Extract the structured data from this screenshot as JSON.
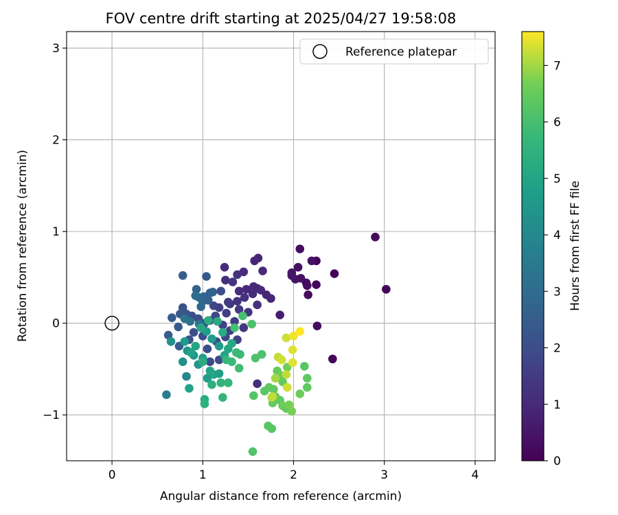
{
  "chart_data": {
    "type": "scatter",
    "title": "FOV centre drift starting at 2025/04/27 19:58:08",
    "xlabel": "Angular distance from reference (arcmin)",
    "ylabel": "Rotation from reference (arcmin)",
    "xlim": [
      -0.5,
      4.22
    ],
    "ylim": [
      -1.5,
      3.18
    ],
    "xticks": [
      0,
      1,
      2,
      3,
      4
    ],
    "yticks": [
      -1,
      0,
      1,
      2,
      3
    ],
    "xtick_labels": [
      "0",
      "1",
      "2",
      "3",
      "4"
    ],
    "ytick_labels": [
      "−1",
      "0",
      "1",
      "2",
      "3"
    ],
    "grid": true,
    "legend": {
      "position": "upper right",
      "entries": [
        "Reference platepar"
      ]
    },
    "reference_point": {
      "x": 0,
      "y": 0
    },
    "colorbar": {
      "label": "Hours from first FF file",
      "colormap": "viridis",
      "range": [
        0,
        7.6
      ],
      "ticks": [
        0,
        1,
        2,
        3,
        4,
        5,
        6,
        7
      ],
      "tick_labels": [
        "0",
        "1",
        "2",
        "3",
        "4",
        "5",
        "6",
        "7"
      ]
    },
    "points": [
      {
        "x": 2.25,
        "y": 0.68,
        "t": 0.1
      },
      {
        "x": 2.45,
        "y": 0.54,
        "t": 0.1
      },
      {
        "x": 2.9,
        "y": 0.94,
        "t": 0.2
      },
      {
        "x": 3.02,
        "y": 0.37,
        "t": 0.1
      },
      {
        "x": 2.43,
        "y": -0.39,
        "t": 0.1
      },
      {
        "x": 2.26,
        "y": -0.03,
        "t": 0.3
      },
      {
        "x": 2.07,
        "y": 0.81,
        "t": 0.3
      },
      {
        "x": 2.05,
        "y": 0.61,
        "t": 0.4
      },
      {
        "x": 2.2,
        "y": 0.68,
        "t": 0.4
      },
      {
        "x": 1.98,
        "y": 0.55,
        "t": 0.5
      },
      {
        "x": 2.02,
        "y": 0.48,
        "t": 0.5
      },
      {
        "x": 2.08,
        "y": 0.49,
        "t": 0.4
      },
      {
        "x": 2.14,
        "y": 0.44,
        "t": 0.3
      },
      {
        "x": 2.15,
        "y": 0.41,
        "t": 0.3
      },
      {
        "x": 2.25,
        "y": 0.42,
        "t": 0.2
      },
      {
        "x": 2.16,
        "y": 0.31,
        "t": 0.3
      },
      {
        "x": 1.98,
        "y": 0.52,
        "t": 0.5
      },
      {
        "x": 1.85,
        "y": 0.09,
        "t": 0.7
      },
      {
        "x": 1.61,
        "y": 0.71,
        "t": 0.9
      },
      {
        "x": 1.57,
        "y": 0.68,
        "t": 0.9
      },
      {
        "x": 1.66,
        "y": 0.57,
        "t": 1.0
      },
      {
        "x": 1.45,
        "y": 0.56,
        "t": 1.1
      },
      {
        "x": 1.38,
        "y": 0.53,
        "t": 1.2
      },
      {
        "x": 1.24,
        "y": 0.61,
        "t": 1.1
      },
      {
        "x": 1.25,
        "y": 0.47,
        "t": 1.2
      },
      {
        "x": 1.33,
        "y": 0.45,
        "t": 1.3
      },
      {
        "x": 1.4,
        "y": 0.35,
        "t": 1.1
      },
      {
        "x": 1.48,
        "y": 0.37,
        "t": 1.0
      },
      {
        "x": 1.56,
        "y": 0.4,
        "t": 1.0
      },
      {
        "x": 1.6,
        "y": 0.38,
        "t": 0.9
      },
      {
        "x": 1.64,
        "y": 0.36,
        "t": 1.0
      },
      {
        "x": 1.7,
        "y": 0.31,
        "t": 0.9
      },
      {
        "x": 1.75,
        "y": 0.27,
        "t": 0.9
      },
      {
        "x": 1.55,
        "y": 0.32,
        "t": 1.1
      },
      {
        "x": 1.46,
        "y": 0.28,
        "t": 1.2
      },
      {
        "x": 1.38,
        "y": 0.24,
        "t": 1.3
      },
      {
        "x": 1.3,
        "y": 0.21,
        "t": 1.4
      },
      {
        "x": 1.6,
        "y": 0.2,
        "t": 1.2
      },
      {
        "x": 1.5,
        "y": 0.12,
        "t": 1.3
      },
      {
        "x": 1.4,
        "y": 0.15,
        "t": 1.4
      },
      {
        "x": 1.28,
        "y": 0.23,
        "t": 1.5
      },
      {
        "x": 1.18,
        "y": 0.17,
        "t": 1.6
      },
      {
        "x": 1.12,
        "y": 0.19,
        "t": 1.8
      },
      {
        "x": 1.26,
        "y": 0.11,
        "t": 1.6
      },
      {
        "x": 1.35,
        "y": 0.02,
        "t": 1.5
      },
      {
        "x": 1.45,
        "y": -0.05,
        "t": 1.4
      },
      {
        "x": 1.3,
        "y": -0.08,
        "t": 1.6
      },
      {
        "x": 1.22,
        "y": -0.02,
        "t": 1.7
      },
      {
        "x": 1.14,
        "y": 0.08,
        "t": 1.8
      },
      {
        "x": 1.08,
        "y": 0.03,
        "t": 1.9
      },
      {
        "x": 1.02,
        "y": 0.0,
        "t": 2.0
      },
      {
        "x": 0.95,
        "y": 0.05,
        "t": 2.1
      },
      {
        "x": 0.88,
        "y": 0.08,
        "t": 2.1
      },
      {
        "x": 0.82,
        "y": 0.1,
        "t": 2.2
      },
      {
        "x": 0.78,
        "y": 0.17,
        "t": 2.2
      },
      {
        "x": 0.75,
        "y": 0.1,
        "t": 2.3
      },
      {
        "x": 0.66,
        "y": 0.06,
        "t": 2.4
      },
      {
        "x": 0.73,
        "y": -0.04,
        "t": 2.4
      },
      {
        "x": 0.62,
        "y": -0.13,
        "t": 2.5
      },
      {
        "x": 0.74,
        "y": -0.25,
        "t": 2.5
      },
      {
        "x": 0.85,
        "y": -0.18,
        "t": 2.2
      },
      {
        "x": 0.9,
        "y": -0.1,
        "t": 2.1
      },
      {
        "x": 1.0,
        "y": -0.14,
        "t": 2.0
      },
      {
        "x": 1.05,
        "y": -0.28,
        "t": 2.0
      },
      {
        "x": 1.15,
        "y": -0.2,
        "t": 1.9
      },
      {
        "x": 1.25,
        "y": -0.15,
        "t": 1.8
      },
      {
        "x": 1.38,
        "y": -0.18,
        "t": 1.7
      },
      {
        "x": 1.18,
        "y": -0.4,
        "t": 1.9
      },
      {
        "x": 1.08,
        "y": -0.42,
        "t": 2.0
      },
      {
        "x": 1.6,
        "y": -0.66,
        "t": 1.2
      },
      {
        "x": 1.04,
        "y": 0.51,
        "t": 2.4
      },
      {
        "x": 0.78,
        "y": 0.52,
        "t": 2.5
      },
      {
        "x": 0.93,
        "y": 0.37,
        "t": 2.7
      },
      {
        "x": 1.01,
        "y": 0.29,
        "t": 2.8
      },
      {
        "x": 1.08,
        "y": 0.33,
        "t": 2.6
      },
      {
        "x": 1.11,
        "y": 0.34,
        "t": 2.7
      },
      {
        "x": 1.2,
        "y": 0.35,
        "t": 2.0
      },
      {
        "x": 0.96,
        "y": 0.28,
        "t": 2.9
      },
      {
        "x": 1.0,
        "y": 0.24,
        "t": 2.8
      },
      {
        "x": 1.06,
        "y": 0.25,
        "t": 2.6
      },
      {
        "x": 0.98,
        "y": 0.18,
        "t": 2.9
      },
      {
        "x": 0.92,
        "y": 0.3,
        "t": 3.0
      },
      {
        "x": 0.86,
        "y": 0.02,
        "t": 3.1
      },
      {
        "x": 0.8,
        "y": 0.05,
        "t": 3.3
      },
      {
        "x": 0.96,
        "y": -0.01,
        "t": 3.2
      },
      {
        "x": 0.6,
        "y": -0.78,
        "t": 3.6
      },
      {
        "x": 0.82,
        "y": -0.58,
        "t": 4.0
      },
      {
        "x": 0.65,
        "y": -0.2,
        "t": 4.3
      },
      {
        "x": 0.78,
        "y": -0.42,
        "t": 4.3
      },
      {
        "x": 0.83,
        "y": -0.3,
        "t": 4.5
      },
      {
        "x": 0.9,
        "y": -0.35,
        "t": 4.4
      },
      {
        "x": 0.8,
        "y": -0.2,
        "t": 4.6
      },
      {
        "x": 0.95,
        "y": -0.45,
        "t": 4.5
      },
      {
        "x": 1.0,
        "y": -0.38,
        "t": 4.6
      },
      {
        "x": 1.04,
        "y": -0.09,
        "t": 4.8
      },
      {
        "x": 1.1,
        "y": -0.17,
        "t": 4.7
      },
      {
        "x": 1.18,
        "y": -0.25,
        "t": 4.6
      },
      {
        "x": 1.05,
        "y": -0.6,
        "t": 4.7
      },
      {
        "x": 0.85,
        "y": -0.71,
        "t": 4.9
      },
      {
        "x": 0.87,
        "y": -0.32,
        "t": 4.9
      },
      {
        "x": 0.92,
        "y": -0.25,
        "t": 5.0
      },
      {
        "x": 0.98,
        "y": -0.05,
        "t": 5.1
      },
      {
        "x": 1.08,
        "y": -0.52,
        "t": 5.0
      },
      {
        "x": 1.12,
        "y": -0.56,
        "t": 5.0
      },
      {
        "x": 1.18,
        "y": -0.55,
        "t": 4.8
      },
      {
        "x": 1.24,
        "y": -0.35,
        "t": 5.0
      },
      {
        "x": 1.28,
        "y": -0.28,
        "t": 5.0
      },
      {
        "x": 1.32,
        "y": -0.22,
        "t": 5.1
      },
      {
        "x": 1.22,
        "y": -0.1,
        "t": 5.2
      },
      {
        "x": 1.16,
        "y": 0.02,
        "t": 5.2
      },
      {
        "x": 1.06,
        "y": 0.03,
        "t": 5.3
      },
      {
        "x": 1.0,
        "y": -0.42,
        "t": 5.3
      },
      {
        "x": 1.02,
        "y": -0.83,
        "t": 5.3
      },
      {
        "x": 1.02,
        "y": -0.88,
        "t": 5.5
      },
      {
        "x": 1.1,
        "y": -0.67,
        "t": 5.4
      },
      {
        "x": 1.2,
        "y": -0.65,
        "t": 5.5
      },
      {
        "x": 1.28,
        "y": -0.65,
        "t": 5.6
      },
      {
        "x": 1.22,
        "y": -0.81,
        "t": 5.6
      },
      {
        "x": 1.26,
        "y": -0.4,
        "t": 5.7
      },
      {
        "x": 1.32,
        "y": -0.42,
        "t": 5.8
      },
      {
        "x": 1.37,
        "y": -0.32,
        "t": 5.8
      },
      {
        "x": 1.41,
        "y": -0.34,
        "t": 5.8
      },
      {
        "x": 1.4,
        "y": -0.49,
        "t": 5.9
      },
      {
        "x": 1.35,
        "y": -0.05,
        "t": 6.0
      },
      {
        "x": 1.44,
        "y": 0.08,
        "t": 6.0
      },
      {
        "x": 1.54,
        "y": -0.01,
        "t": 6.1
      },
      {
        "x": 1.58,
        "y": -0.38,
        "t": 6.1
      },
      {
        "x": 1.65,
        "y": -0.34,
        "t": 6.1
      },
      {
        "x": 1.56,
        "y": -0.79,
        "t": 6.2
      },
      {
        "x": 1.55,
        "y": -1.4,
        "t": 6.2
      },
      {
        "x": 1.72,
        "y": -1.12,
        "t": 6.3
      },
      {
        "x": 1.76,
        "y": -1.15,
        "t": 6.3
      },
      {
        "x": 1.68,
        "y": -0.74,
        "t": 6.3
      },
      {
        "x": 1.73,
        "y": -0.7,
        "t": 6.4
      },
      {
        "x": 1.78,
        "y": -0.72,
        "t": 6.4
      },
      {
        "x": 1.77,
        "y": -0.87,
        "t": 6.5
      },
      {
        "x": 1.8,
        "y": -0.8,
        "t": 6.5
      },
      {
        "x": 1.85,
        "y": -0.84,
        "t": 6.4
      },
      {
        "x": 1.88,
        "y": -0.9,
        "t": 6.6
      },
      {
        "x": 1.92,
        "y": -0.93,
        "t": 6.5
      },
      {
        "x": 1.95,
        "y": -0.89,
        "t": 6.7
      },
      {
        "x": 1.98,
        "y": -0.96,
        "t": 6.7
      },
      {
        "x": 1.82,
        "y": -0.52,
        "t": 6.5
      },
      {
        "x": 1.86,
        "y": -0.57,
        "t": 6.6
      },
      {
        "x": 1.88,
        "y": -0.64,
        "t": 6.5
      },
      {
        "x": 1.93,
        "y": -0.48,
        "t": 6.6
      },
      {
        "x": 2.12,
        "y": -0.47,
        "t": 6.3
      },
      {
        "x": 2.15,
        "y": -0.6,
        "t": 6.4
      },
      {
        "x": 2.15,
        "y": -0.7,
        "t": 6.4
      },
      {
        "x": 2.07,
        "y": -0.77,
        "t": 6.6
      },
      {
        "x": 1.8,
        "y": -0.6,
        "t": 7.0
      },
      {
        "x": 1.76,
        "y": -0.81,
        "t": 7.1
      },
      {
        "x": 1.83,
        "y": -0.37,
        "t": 7.2
      },
      {
        "x": 1.87,
        "y": -0.4,
        "t": 7.3
      },
      {
        "x": 1.92,
        "y": -0.56,
        "t": 7.2
      },
      {
        "x": 1.93,
        "y": -0.7,
        "t": 7.3
      },
      {
        "x": 1.99,
        "y": -0.43,
        "t": 7.4
      },
      {
        "x": 1.99,
        "y": -0.29,
        "t": 7.4
      },
      {
        "x": 1.92,
        "y": -0.16,
        "t": 7.3
      },
      {
        "x": 2.0,
        "y": -0.14,
        "t": 7.5
      },
      {
        "x": 2.07,
        "y": -0.09,
        "t": 7.6
      },
      {
        "x": 1.77,
        "y": -0.8,
        "t": 7.2
      }
    ]
  }
}
